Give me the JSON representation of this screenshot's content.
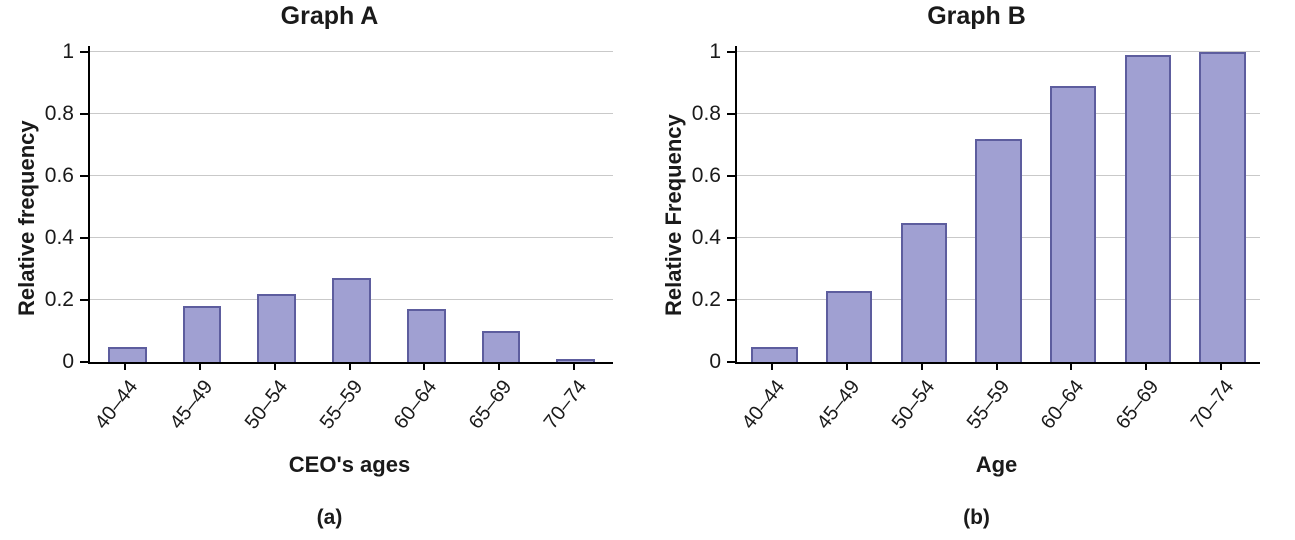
{
  "figure": {
    "background": "#ffffff"
  },
  "colors": {
    "bar_fill": "#a0a0d2",
    "bar_border": "#5d5d9e",
    "gridline": "#c9c9c9",
    "axis": "#000000",
    "text": "#1a1a1a"
  },
  "chart_data": [
    {
      "id": "graph-a",
      "type": "bar",
      "title": "Graph A",
      "ylabel": "Relative frequency",
      "xlabel": "CEO's ages",
      "caption": "(a)",
      "categories": [
        "40–44",
        "45–49",
        "50–54",
        "55–59",
        "60–64",
        "65–69",
        "70–74"
      ],
      "values": [
        0.05,
        0.18,
        0.22,
        0.27,
        0.17,
        0.1,
        0.01
      ],
      "yticks": [
        0,
        0.2,
        0.4,
        0.6,
        0.8,
        1
      ],
      "ytick_labels": [
        "0",
        "0.2",
        "0.4",
        "0.6",
        "0.8",
        "1"
      ],
      "ylim": [
        0,
        1
      ],
      "grid": true,
      "legend": false,
      "bar_width_frac": 0.52
    },
    {
      "id": "graph-b",
      "type": "bar",
      "title": "Graph B",
      "ylabel": "Relative Frequency",
      "xlabel": "Age",
      "caption": "(b)",
      "categories": [
        "40–44",
        "45–49",
        "50–54",
        "55–59",
        "60–64",
        "65–69",
        "70–74"
      ],
      "values": [
        0.05,
        0.23,
        0.45,
        0.72,
        0.89,
        0.99,
        1.0
      ],
      "yticks": [
        0,
        0.2,
        0.4,
        0.6,
        0.8,
        1
      ],
      "ytick_labels": [
        "0",
        "0.2",
        "0.4",
        "0.6",
        "0.8",
        "1"
      ],
      "ylim": [
        0,
        1
      ],
      "grid": true,
      "legend": false,
      "bar_width_frac": 0.62
    }
  ]
}
